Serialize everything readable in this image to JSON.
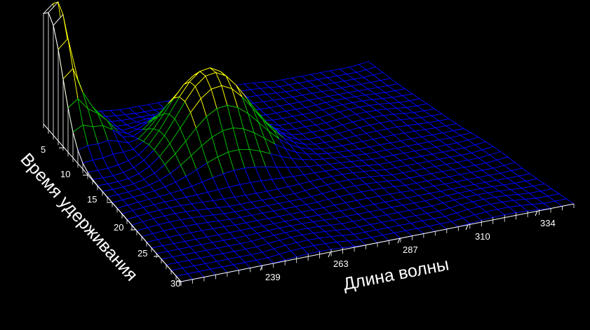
{
  "chart_data": {
    "type": "surface",
    "title": "",
    "xlabel": "Длина волны",
    "ylabel": "Время удерживания",
    "x_ticks": [
      "239",
      "263",
      "287",
      "310",
      "334"
    ],
    "y_ticks": [
      "5",
      "10",
      "15",
      "20",
      "25",
      "30"
    ],
    "x_range": [
      227,
      346
    ],
    "y_range": [
      1,
      30
    ],
    "colormap": [
      "#0000ff",
      "#00c000",
      "#ffff00",
      "#ffffff"
    ],
    "background": "#000000",
    "peaks": [
      {
        "wavelength": 229,
        "retention_time": 2,
        "relative_height": 1.0
      },
      {
        "wavelength": 268,
        "retention_time": 12,
        "relative_height": 0.62
      },
      {
        "wavelength": 238,
        "retention_time": 5,
        "relative_height": 0.22
      }
    ]
  }
}
